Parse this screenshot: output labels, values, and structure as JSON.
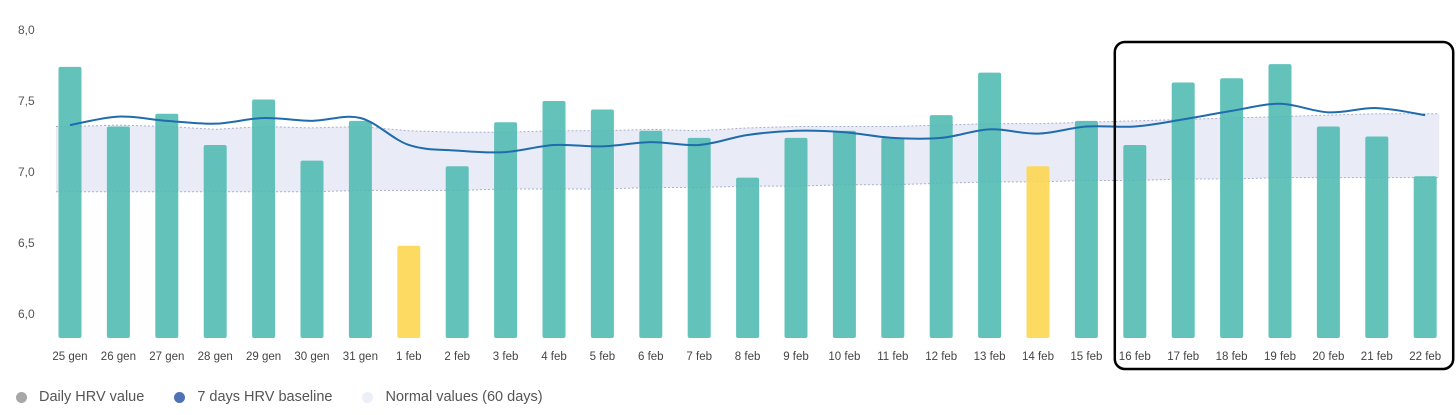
{
  "chart_data": {
    "type": "bar",
    "categories": [
      "25 gen",
      "26 gen",
      "27 gen",
      "28 gen",
      "29 gen",
      "30 gen",
      "31 gen",
      "1 feb",
      "2 feb",
      "3 feb",
      "4 feb",
      "5 feb",
      "6 feb",
      "7 feb",
      "8 feb",
      "9 feb",
      "10 feb",
      "11 feb",
      "12 feb",
      "13 feb",
      "14 feb",
      "15 feb",
      "16 feb",
      "17 feb",
      "18 feb",
      "19 feb",
      "20 feb",
      "21 feb",
      "22 feb"
    ],
    "ylim": [
      5.83,
      8.0
    ],
    "yticks": [
      "6,0",
      "6,5",
      "7,0",
      "7,5",
      "8,0"
    ],
    "ytick_values": [
      6.0,
      6.5,
      7.0,
      7.5,
      8.0
    ],
    "series": [
      {
        "name": "Daily HRV value",
        "type": "bar",
        "values": [
          7.74,
          7.32,
          7.41,
          7.19,
          7.51,
          7.08,
          7.36,
          6.48,
          7.04,
          7.35,
          7.5,
          7.44,
          7.29,
          7.24,
          6.96,
          7.24,
          7.29,
          7.24,
          7.4,
          7.7,
          7.04,
          7.36,
          7.19,
          7.63,
          7.66,
          7.76,
          7.32,
          7.25,
          6.97
        ],
        "highlight": [
          false,
          false,
          false,
          false,
          false,
          false,
          false,
          true,
          false,
          false,
          false,
          false,
          false,
          false,
          false,
          false,
          false,
          false,
          false,
          false,
          true,
          false,
          false,
          false,
          false,
          false,
          false,
          false,
          false
        ]
      },
      {
        "name": "7 days HRV baseline",
        "type": "line",
        "values": [
          7.33,
          7.39,
          7.36,
          7.34,
          7.38,
          7.36,
          7.38,
          7.19,
          7.15,
          7.14,
          7.19,
          7.18,
          7.21,
          7.19,
          7.26,
          7.29,
          7.28,
          7.24,
          7.24,
          7.3,
          7.27,
          7.32,
          7.32,
          7.37,
          7.43,
          7.48,
          7.42,
          7.45,
          7.4
        ]
      },
      {
        "name": "Normal values (60 days)",
        "type": "band",
        "upper": [
          7.32,
          7.33,
          7.32,
          7.3,
          7.32,
          7.31,
          7.32,
          7.29,
          7.28,
          7.28,
          7.29,
          7.29,
          7.3,
          7.29,
          7.31,
          7.32,
          7.32,
          7.32,
          7.33,
          7.34,
          7.34,
          7.35,
          7.36,
          7.37,
          7.38,
          7.39,
          7.4,
          7.41,
          7.41
        ],
        "lower": [
          6.86,
          6.86,
          6.86,
          6.86,
          6.86,
          6.86,
          6.87,
          6.87,
          6.87,
          6.88,
          6.88,
          6.88,
          6.89,
          6.89,
          6.9,
          6.9,
          6.91,
          6.91,
          6.92,
          6.93,
          6.93,
          6.94,
          6.94,
          6.95,
          6.95,
          6.96,
          6.96,
          6.96,
          6.96
        ]
      }
    ],
    "highlight_box": {
      "from": "16 feb",
      "to": "22 feb"
    },
    "grid": false,
    "legend_position": "bottom-left",
    "colors": {
      "bar": "#4DBBB2",
      "bar_highlight": "#FDD651",
      "line": "#1F6CAD",
      "band_fill": "#E9ECF6",
      "band_edge": "#A9AECB",
      "highlight_box": "#000000"
    }
  },
  "legend": [
    {
      "label": "Daily HRV value",
      "color": "#A7A7A7"
    },
    {
      "label": "7 days HRV baseline",
      "color": "#4F72B4"
    },
    {
      "label": "Normal values (60 days)",
      "color": "#ECEFF8"
    }
  ]
}
